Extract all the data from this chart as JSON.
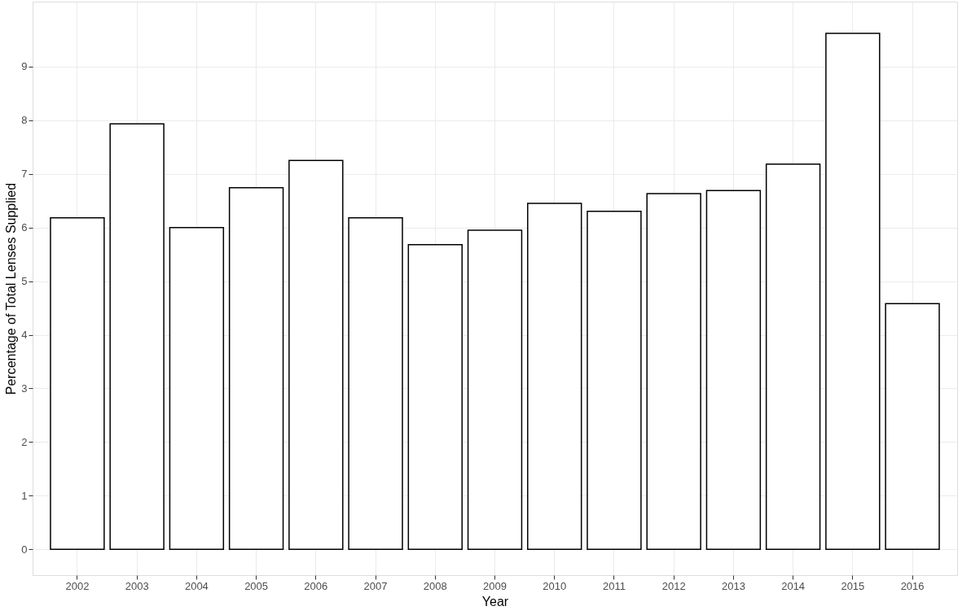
{
  "chart_data": {
    "type": "bar",
    "xlabel": "Year",
    "ylabel": "Percentage of Total Lenses Supplied",
    "categories": [
      "2002",
      "2003",
      "2004",
      "2005",
      "2006",
      "2007",
      "2008",
      "2009",
      "2010",
      "2011",
      "2012",
      "2013",
      "2014",
      "2015",
      "2016"
    ],
    "values": [
      6.18,
      7.93,
      6.0,
      6.74,
      7.25,
      6.18,
      5.68,
      5.95,
      6.45,
      6.3,
      6.63,
      6.69,
      7.18,
      9.62,
      4.58
    ],
    "color": "#ffffff",
    "ylim": [
      -0.48,
      10.21
    ],
    "yticks": [
      0,
      1,
      2,
      3,
      4,
      5,
      6,
      7,
      8,
      9
    ],
    "grid": true
  }
}
